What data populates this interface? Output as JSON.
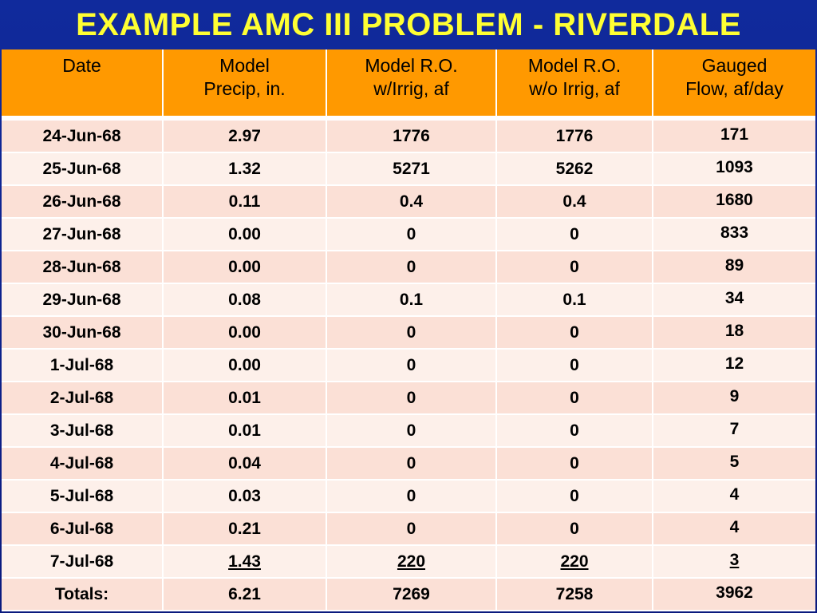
{
  "title": "EXAMPLE AMC III PROBLEM - RIVERDALE",
  "header": [
    [
      "Date"
    ],
    [
      "Model",
      "Precip, in."
    ],
    [
      "Model R.O.",
      "w/Irrig, af"
    ],
    [
      "Model R.O.",
      "w/o Irrig, af"
    ],
    [
      "Gauged",
      "Flow, af/day"
    ]
  ],
  "rows": [
    [
      "24-Jun-68",
      "2.97",
      "1776",
      "1776",
      "171"
    ],
    [
      "25-Jun-68",
      "1.32",
      "5271",
      "5262",
      "1093"
    ],
    [
      "26-Jun-68",
      "0.11",
      "0.4",
      "0.4",
      "1680"
    ],
    [
      "27-Jun-68",
      "0.00",
      "0",
      "0",
      "833"
    ],
    [
      "28-Jun-68",
      "0.00",
      "0",
      "0",
      "89"
    ],
    [
      "29-Jun-68",
      "0.08",
      "0.1",
      "0.1",
      "34"
    ],
    [
      "30-Jun-68",
      "0.00",
      "0",
      "0",
      "18"
    ],
    [
      "1-Jul-68",
      "0.00",
      "0",
      "0",
      "12"
    ],
    [
      "2-Jul-68",
      "0.01",
      "0",
      "0",
      "9"
    ],
    [
      "3-Jul-68",
      "0.01",
      "0",
      "0",
      "7"
    ],
    [
      "4-Jul-68",
      "0.04",
      "0",
      "0",
      "5"
    ],
    [
      "5-Jul-68",
      "0.03",
      "0",
      "0",
      "4"
    ],
    [
      "6-Jul-68",
      "0.21",
      "0",
      "0",
      "4"
    ],
    [
      "7-Jul-68",
      "1.43",
      "220",
      "220",
      "3"
    ],
    [
      "Totals:",
      "6.21",
      "7269",
      "7258",
      "3962"
    ]
  ],
  "colors": {
    "title": "#ffff33",
    "header_bg": "#ff9900",
    "row_a": "#fbe0d6",
    "row_b": "#fdf0ea",
    "background": "#0d1f8a"
  }
}
